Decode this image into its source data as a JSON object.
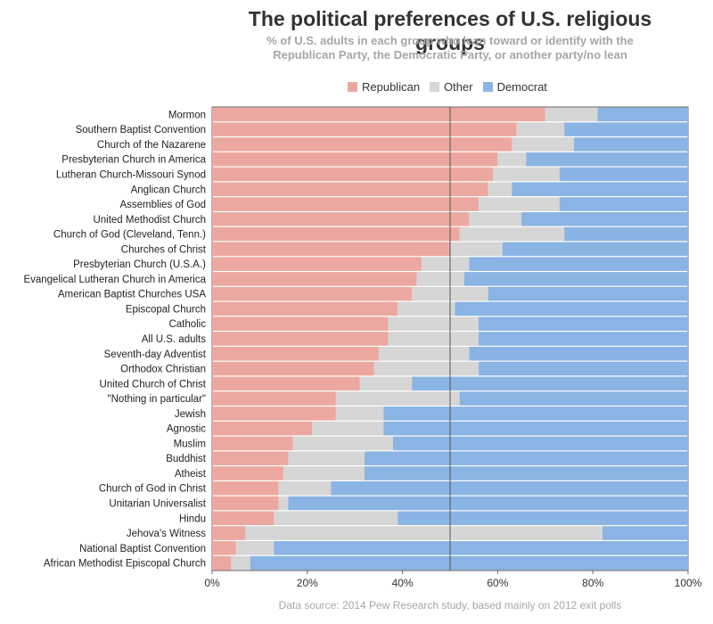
{
  "chart_data": {
    "type": "bar",
    "orientation": "horizontal",
    "stacked": "percent",
    "title": "The political preferences of U.S. religious groups",
    "subtitle": [
      "% of U.S. adults in each group who lean toward or identify with the",
      "Republican Party, the Democratic Party, or another party/no lean"
    ],
    "legend_position": "top-center",
    "categories": [
      "Mormon",
      "Southern Baptist Convention",
      "Church of the Nazarene",
      "Presbyterian Church in America",
      "Lutheran Church-Missouri Synod",
      "Anglican Church",
      "Assemblies of God",
      "United Methodist Church",
      "Church of God (Cleveland, Tenn.)",
      "Churches of Christ",
      "Presbyterian Church (U.S.A.)",
      "Evangelical Lutheran Church in America",
      "American Baptist Churches USA",
      "Episcopal Church",
      "Catholic",
      "All U.S. adults",
      "Seventh-day Adventist",
      "Orthodox Christian",
      "United Church of Christ",
      "\"Nothing in particular\"",
      "Jewish",
      "Agnostic",
      "Muslim",
      "Buddhist",
      "Atheist",
      "Church of God in Christ",
      "Unitarian Universalist",
      "Hindu",
      "Jehova's Witness",
      "National Baptist Convention",
      "African Methodist Episcopal Church"
    ],
    "series": [
      {
        "name": "Republican",
        "color": "#eca8a0",
        "values": [
          70,
          64,
          63,
          60,
          59,
          58,
          56,
          54,
          52,
          50,
          44,
          43,
          42,
          39,
          37,
          37,
          35,
          34,
          31,
          26,
          26,
          21,
          17,
          16,
          15,
          14,
          14,
          13,
          7,
          5,
          4
        ]
      },
      {
        "name": "Other",
        "color": "#d6d6d6",
        "values": [
          11,
          10,
          13,
          6,
          14,
          5,
          17,
          11,
          22,
          11,
          10,
          10,
          16,
          12,
          19,
          19,
          19,
          22,
          11,
          26,
          10,
          15,
          21,
          16,
          17,
          11,
          2,
          26,
          75,
          8,
          4
        ]
      },
      {
        "name": "Democrat",
        "color": "#8ab4e3",
        "values": [
          19,
          26,
          24,
          34,
          27,
          37,
          27,
          35,
          26,
          39,
          46,
          47,
          42,
          49,
          44,
          44,
          46,
          44,
          58,
          48,
          64,
          64,
          62,
          68,
          68,
          75,
          84,
          61,
          18,
          87,
          92
        ]
      }
    ],
    "xlim": [
      0,
      100
    ],
    "x_ticks": [
      "0%",
      "20%",
      "40%",
      "60%",
      "80%",
      "100%"
    ],
    "reference_line": 50,
    "source": "Data source: 2014 Pew Research study, based mainly on 2012 exit polls"
  }
}
